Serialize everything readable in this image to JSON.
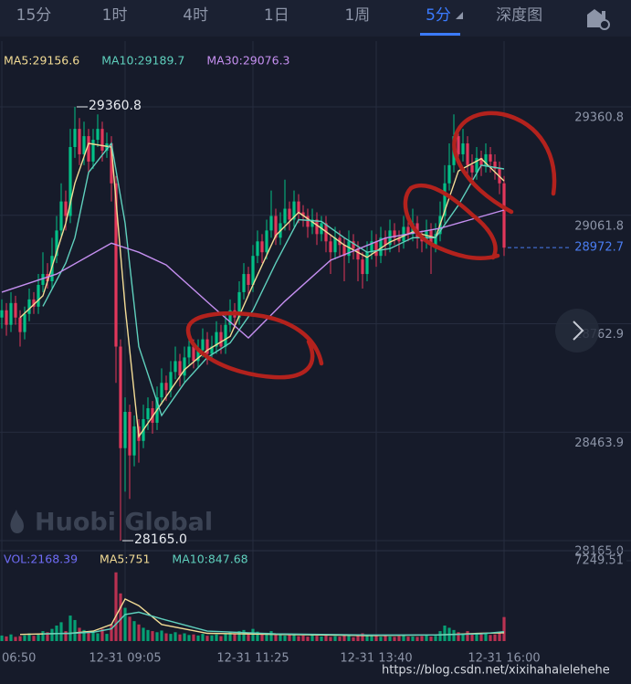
{
  "tabs": [
    "15分",
    "1时",
    "4时",
    "1日",
    "1周",
    "5分",
    "深度图"
  ],
  "active_tab": 5,
  "watermark": "Huobi Global",
  "footer_url": "https://blog.csdn.net/xixihahalelehehe",
  "chart_data": [
    {
      "type": "candlestick",
      "up_color": "#03c087",
      "down_color": "#e2375b",
      "xlim": [
        -0.4,
        137.8
      ],
      "xticks": [
        {
          "value": 0,
          "label": "06:50"
        },
        {
          "value": 27,
          "label": "12-31 09:05"
        },
        {
          "value": 55,
          "label": "12-31 11:25"
        },
        {
          "value": 82,
          "label": "12-31 13:40"
        },
        {
          "value": 110,
          "label": "12-31 16:00"
        }
      ],
      "ylim": [
        28145,
        29542
      ],
      "yticks": [
        {
          "value": 28165,
          "label": "28165.0"
        },
        28463.9,
        28762.9,
        29061.8,
        29360.8
      ],
      "grid": true,
      "annotations": {
        "high": "29360.8",
        "low": "28165.0"
      },
      "candles": [
        [
          28780,
          28830,
          28750,
          28800
        ],
        [
          28800,
          28820,
          28730,
          28760
        ],
        [
          28760,
          28850,
          28740,
          28820
        ],
        [
          28820,
          28840,
          28760,
          28780
        ],
        [
          28780,
          28800,
          28700,
          28740
        ],
        [
          28740,
          28810,
          28720,
          28790
        ],
        [
          28790,
          28860,
          28770,
          28830
        ],
        [
          28830,
          28850,
          28790,
          28810
        ],
        [
          28810,
          28900,
          28790,
          28870
        ],
        [
          28870,
          28960,
          28850,
          28900
        ],
        [
          28900,
          28930,
          28860,
          28880
        ],
        [
          28880,
          29000,
          28860,
          28950
        ],
        [
          28950,
          29060,
          28930,
          29020
        ],
        [
          29020,
          29150,
          29000,
          29100
        ],
        [
          29100,
          29130,
          29020,
          29060
        ],
        [
          29060,
          29300,
          29040,
          29250
        ],
        [
          29250,
          29360.8,
          29220,
          29300
        ],
        [
          29300,
          29330,
          29200,
          29230
        ],
        [
          29230,
          29320,
          29200,
          29280
        ],
        [
          29280,
          29300,
          29180,
          29210
        ],
        [
          29210,
          29300,
          29190,
          29270
        ],
        [
          29270,
          29340,
          29250,
          29300
        ],
        [
          29300,
          29320,
          29210,
          29240
        ],
        [
          29240,
          29290,
          29220,
          29260
        ],
        [
          29260,
          29280,
          29100,
          29150
        ],
        [
          29150,
          29170,
          28600,
          28700
        ],
        [
          28700,
          28720,
          28165,
          28420
        ],
        [
          28420,
          28560,
          28300,
          28520
        ],
        [
          28520,
          28540,
          28280,
          28400
        ],
        [
          28400,
          28510,
          28370,
          28480
        ],
        [
          28480,
          28500,
          28380,
          28440
        ],
        [
          28440,
          28540,
          28420,
          28500
        ],
        [
          28500,
          28560,
          28470,
          28530
        ],
        [
          28530,
          28550,
          28460,
          28490
        ],
        [
          28490,
          28590,
          28470,
          28560
        ],
        [
          28560,
          28640,
          28540,
          28600
        ],
        [
          28600,
          28620,
          28550,
          28580
        ],
        [
          28580,
          28660,
          28560,
          28630
        ],
        [
          28630,
          28700,
          28610,
          28660
        ],
        [
          28660,
          28680,
          28590,
          28620
        ],
        [
          28620,
          28700,
          28600,
          28670
        ],
        [
          28670,
          28730,
          28650,
          28700
        ],
        [
          28700,
          28720,
          28640,
          28660
        ],
        [
          28660,
          28720,
          28640,
          28690
        ],
        [
          28690,
          28750,
          28670,
          28720
        ],
        [
          28720,
          28740,
          28650,
          28680
        ],
        [
          28680,
          28730,
          28660,
          28700
        ],
        [
          28700,
          28770,
          28680,
          28740
        ],
        [
          28740,
          28760,
          28680,
          28700
        ],
        [
          28700,
          28790,
          28680,
          28760
        ],
        [
          28760,
          28830,
          28740,
          28800
        ],
        [
          28800,
          28820,
          28750,
          28780
        ],
        [
          28780,
          28880,
          28760,
          28850
        ],
        [
          28850,
          28930,
          28830,
          28900
        ],
        [
          28900,
          28920,
          28840,
          28870
        ],
        [
          28870,
          28980,
          28850,
          28950
        ],
        [
          28950,
          29020,
          28930,
          28990
        ],
        [
          28990,
          29010,
          28930,
          28960
        ],
        [
          28960,
          29050,
          28940,
          29020
        ],
        [
          29020,
          29130,
          29000,
          29060
        ],
        [
          29060,
          29080,
          28980,
          29000
        ],
        [
          29000,
          29070,
          28980,
          29040
        ],
        [
          29040,
          29160,
          29020,
          29080
        ],
        [
          29080,
          29100,
          29020,
          29050
        ],
        [
          29050,
          29130,
          29030,
          29100
        ],
        [
          29100,
          29120,
          29040,
          29070
        ],
        [
          29070,
          29090,
          29030,
          29060
        ],
        [
          29060,
          29080,
          29000,
          29030
        ],
        [
          29030,
          29080,
          29010,
          29050
        ],
        [
          29050,
          29070,
          28980,
          29010
        ],
        [
          29010,
          29060,
          28990,
          29040
        ],
        [
          29040,
          29060,
          28960,
          28990
        ],
        [
          28990,
          29010,
          28900,
          28960
        ],
        [
          28960,
          29030,
          28940,
          29000
        ],
        [
          29000,
          29020,
          28950,
          28980
        ],
        [
          28980,
          29000,
          28880,
          28950
        ],
        [
          28950,
          29020,
          28930,
          28990
        ],
        [
          28990,
          29010,
          28940,
          28970
        ],
        [
          28970,
          28990,
          28880,
          28940
        ],
        [
          28940,
          28960,
          28860,
          28900
        ],
        [
          28900,
          28990,
          28880,
          28960
        ],
        [
          28960,
          29020,
          28940,
          28990
        ],
        [
          28990,
          29010,
          28920,
          28950
        ],
        [
          28950,
          29030,
          28930,
          29000
        ],
        [
          29000,
          29020,
          28950,
          28980
        ],
        [
          28980,
          29050,
          28960,
          29020
        ],
        [
          29020,
          29040,
          28980,
          29000
        ],
        [
          29000,
          29020,
          28960,
          28990
        ],
        [
          28990,
          29060,
          28970,
          29030
        ],
        [
          29030,
          29050,
          28990,
          29010
        ],
        [
          29010,
          29080,
          28990,
          29040
        ],
        [
          29040,
          29060,
          28970,
          29000
        ],
        [
          29000,
          29020,
          28960,
          28990
        ],
        [
          28990,
          29050,
          28970,
          29020
        ],
        [
          29020,
          29040,
          28900,
          28980
        ],
        [
          28980,
          29040,
          28960,
          29010
        ],
        [
          29010,
          29100,
          28990,
          29060
        ],
        [
          29060,
          29200,
          29040,
          29150
        ],
        [
          29150,
          29260,
          29130,
          29200
        ],
        [
          29200,
          29340,
          29180,
          29280
        ],
        [
          29280,
          29300,
          29200,
          29230
        ],
        [
          29230,
          29300,
          29210,
          29260
        ],
        [
          29260,
          29280,
          29170,
          29200
        ],
        [
          29200,
          29230,
          29150,
          29180
        ],
        [
          29180,
          29250,
          29160,
          29220
        ],
        [
          29220,
          29240,
          29170,
          29200
        ],
        [
          29200,
          29260,
          29180,
          29230
        ],
        [
          29230,
          29250,
          29180,
          29210
        ],
        [
          29210,
          29230,
          29160,
          29190
        ],
        [
          29190,
          29210,
          29120,
          29150
        ],
        [
          29150,
          29170,
          28950,
          28972.7
        ]
      ],
      "series": [
        {
          "name": "MA5:29156.6",
          "color": "#f3dc95",
          "x": [
            4,
            9,
            14,
            16,
            19,
            24,
            27,
            30,
            35,
            40,
            45,
            50,
            55,
            60,
            65,
            70,
            75,
            80,
            85,
            90,
            95,
            100,
            105,
            110
          ],
          "values": [
            28780,
            28840,
            29040,
            29150,
            29260,
            29250,
            28810,
            28452,
            28544,
            28636,
            28690,
            28728,
            28870,
            29006,
            29070,
            29026,
            28980,
            28946,
            28988,
            29016,
            29000,
            29184,
            29218,
            29156.6
          ]
        },
        {
          "name": "MA10:29189.7",
          "color": "#5fd0bd",
          "x": [
            9,
            14,
            16,
            19,
            24,
            27,
            30,
            35,
            40,
            45,
            50,
            55,
            60,
            65,
            70,
            75,
            80,
            85,
            90,
            95,
            100,
            105,
            110
          ],
          "values": [
            28811,
            28930,
            29000,
            29180,
            29260,
            29040,
            28700,
            28510,
            28600,
            28670,
            28710,
            28800,
            28930,
            29050,
            29045,
            29000,
            28960,
            28970,
            29000,
            29000,
            29090,
            29200,
            29189.7
          ]
        },
        {
          "name": "MA30:29076.3",
          "color": "#c58ff0",
          "x": [
            0,
            12,
            24,
            30,
            36,
            46,
            54,
            62,
            72,
            84,
            96,
            110
          ],
          "values": [
            28850,
            28900,
            28985,
            28960,
            28925,
            28812,
            28724,
            28825,
            28938,
            28999,
            29026,
            29076.3
          ]
        }
      ]
    },
    {
      "type": "bar",
      "legend_title": "VOL:2168.39",
      "title_color": "#6f6cf6",
      "ylim": [
        0,
        7249.51
      ],
      "yticks": [
        7249.51
      ],
      "values": [
        500,
        420,
        600,
        380,
        450,
        520,
        700,
        480,
        650,
        900,
        800,
        1100,
        1400,
        1700,
        900,
        2300,
        1900,
        1200,
        1000,
        800,
        900,
        700,
        1100,
        650,
        1500,
        6200,
        4300,
        3000,
        2200,
        1800,
        1500,
        1200,
        1000,
        900,
        800,
        950,
        700,
        650,
        800,
        600,
        700,
        550,
        600,
        500,
        650,
        480,
        520,
        600,
        450,
        700,
        800,
        650,
        900,
        1000,
        700,
        1100,
        850,
        600,
        750,
        900,
        700,
        650,
        500,
        600,
        550,
        450,
        500,
        400,
        550,
        480,
        420,
        500,
        380,
        450,
        400,
        520,
        480,
        350,
        600,
        700,
        550,
        450,
        500,
        400,
        480,
        420,
        380,
        450,
        500,
        400,
        420,
        380,
        450,
        500,
        400,
        480,
        900,
        1400,
        1200,
        1000,
        800,
        700,
        900,
        600,
        750,
        650,
        700,
        550,
        600,
        800,
        2168.39
      ],
      "series": [
        {
          "name": "MA5:751",
          "color": "#f3dc95",
          "x": [
            4,
            15,
            20,
            24,
            27,
            30,
            35,
            45,
            60,
            80,
            95,
            105,
            110
          ],
          "values": [
            600,
            700,
            900,
            1500,
            3800,
            3200,
            1500,
            700,
            600,
            500,
            550,
            700,
            751
          ]
        },
        {
          "name": "MA10:847.68",
          "color": "#5fd0bd",
          "x": [
            9,
            15,
            20,
            24,
            27,
            30,
            35,
            45,
            60,
            80,
            95,
            105,
            110
          ],
          "values": [
            650,
            700,
            800,
            1100,
            2400,
            2600,
            2000,
            900,
            650,
            550,
            550,
            650,
            847.68
          ]
        }
      ]
    }
  ]
}
